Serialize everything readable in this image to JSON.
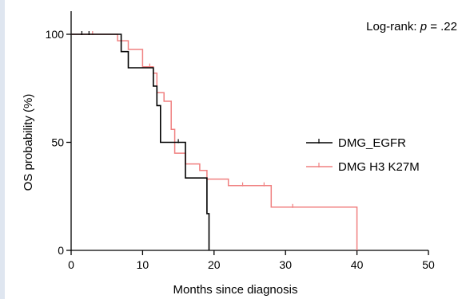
{
  "chart_data": {
    "type": "line",
    "subtype": "kaplan-meier-step",
    "xlabel": "Months since diagnosis",
    "ylabel": "OS probability (%)",
    "xlim": [
      0,
      50
    ],
    "ylim": [
      0,
      100
    ],
    "xticks": [
      0,
      10,
      20,
      30,
      40,
      50
    ],
    "yticks": [
      0,
      50,
      100
    ],
    "grid": false,
    "legend_position": "right",
    "annotation": {
      "prefix": "Log-rank: ",
      "p_symbol": "p",
      "suffix": " = .22"
    },
    "series": [
      {
        "name": "DMG_EGFR",
        "color": "#000000",
        "steps": [
          [
            0,
            100
          ],
          [
            7,
            100
          ],
          [
            7,
            92
          ],
          [
            7.5,
            92
          ],
          [
            7.5,
            92
          ],
          [
            8,
            92
          ],
          [
            8,
            84.5
          ],
          [
            11.5,
            84.5
          ],
          [
            11.5,
            76
          ],
          [
            12,
            76
          ],
          [
            12,
            67
          ],
          [
            12.5,
            67
          ],
          [
            12.5,
            50
          ],
          [
            16,
            50
          ],
          [
            16,
            33.5
          ],
          [
            19,
            33.5
          ],
          [
            19,
            17
          ],
          [
            19.3,
            17
          ],
          [
            19.3,
            0
          ]
        ],
        "censor": [
          [
            1.5,
            100
          ],
          [
            2.5,
            100
          ],
          [
            15,
            50
          ]
        ]
      },
      {
        "name": "DMG H3 K27M",
        "color": "#f08080",
        "steps": [
          [
            0,
            100
          ],
          [
            6.5,
            100
          ],
          [
            6.5,
            97
          ],
          [
            8,
            97
          ],
          [
            8,
            93
          ],
          [
            10,
            93
          ],
          [
            10,
            85
          ],
          [
            11.5,
            85
          ],
          [
            11.5,
            82
          ],
          [
            12,
            82
          ],
          [
            12,
            73
          ],
          [
            13,
            73
          ],
          [
            13,
            69
          ],
          [
            14,
            69
          ],
          [
            14,
            56
          ],
          [
            14.5,
            56
          ],
          [
            14.5,
            45
          ],
          [
            16,
            45
          ],
          [
            16,
            40
          ],
          [
            18,
            40
          ],
          [
            18,
            37
          ],
          [
            19,
            37
          ],
          [
            19,
            33
          ],
          [
            22,
            33
          ],
          [
            22,
            30
          ],
          [
            28,
            30
          ],
          [
            28,
            20
          ],
          [
            40,
            20
          ],
          [
            40,
            0
          ]
        ],
        "censor": [
          [
            3,
            100
          ],
          [
            11,
            85
          ],
          [
            24,
            30
          ],
          [
            27,
            30
          ],
          [
            31,
            20
          ]
        ]
      }
    ]
  }
}
